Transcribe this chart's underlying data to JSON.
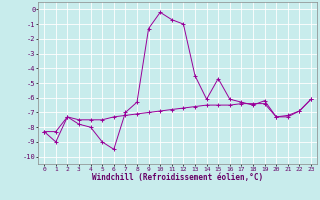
{
  "xlabel": "Windchill (Refroidissement éolien,°C)",
  "ylabel": "",
  "background_color": "#c8ecec",
  "grid_color": "#ffffff",
  "line_color": "#990099",
  "xlim": [
    -0.5,
    23.5
  ],
  "ylim": [
    -10.5,
    0.5
  ],
  "xticks": [
    0,
    1,
    2,
    3,
    4,
    5,
    6,
    7,
    8,
    9,
    10,
    11,
    12,
    13,
    14,
    15,
    16,
    17,
    18,
    19,
    20,
    21,
    22,
    23
  ],
  "yticks": [
    0,
    -1,
    -2,
    -3,
    -4,
    -5,
    -6,
    -7,
    -8,
    -9,
    -10
  ],
  "curve1_x": [
    0,
    1,
    2,
    3,
    4,
    5,
    6,
    7,
    8,
    9,
    10,
    11,
    12,
    13,
    14,
    15,
    16,
    17,
    18,
    19,
    20,
    21,
    22,
    23
  ],
  "curve1_y": [
    -8.3,
    -9.0,
    -7.3,
    -7.8,
    -8.0,
    -9.0,
    -9.5,
    -7.0,
    -6.3,
    -1.3,
    -0.2,
    -0.7,
    -1.0,
    -4.5,
    -6.1,
    -4.7,
    -6.1,
    -6.3,
    -6.5,
    -6.2,
    -7.3,
    -7.3,
    -6.9,
    -6.1
  ],
  "curve2_x": [
    0,
    1,
    2,
    3,
    4,
    5,
    6,
    7,
    8,
    9,
    10,
    11,
    12,
    13,
    14,
    15,
    16,
    17,
    18,
    19,
    20,
    21,
    22,
    23
  ],
  "curve2_y": [
    -8.3,
    -8.3,
    -7.3,
    -7.5,
    -7.5,
    -7.5,
    -7.3,
    -7.2,
    -7.1,
    -7.0,
    -6.9,
    -6.8,
    -6.7,
    -6.6,
    -6.5,
    -6.5,
    -6.5,
    -6.4,
    -6.4,
    -6.4,
    -7.3,
    -7.2,
    -6.9,
    -6.1
  ],
  "marker": "+"
}
